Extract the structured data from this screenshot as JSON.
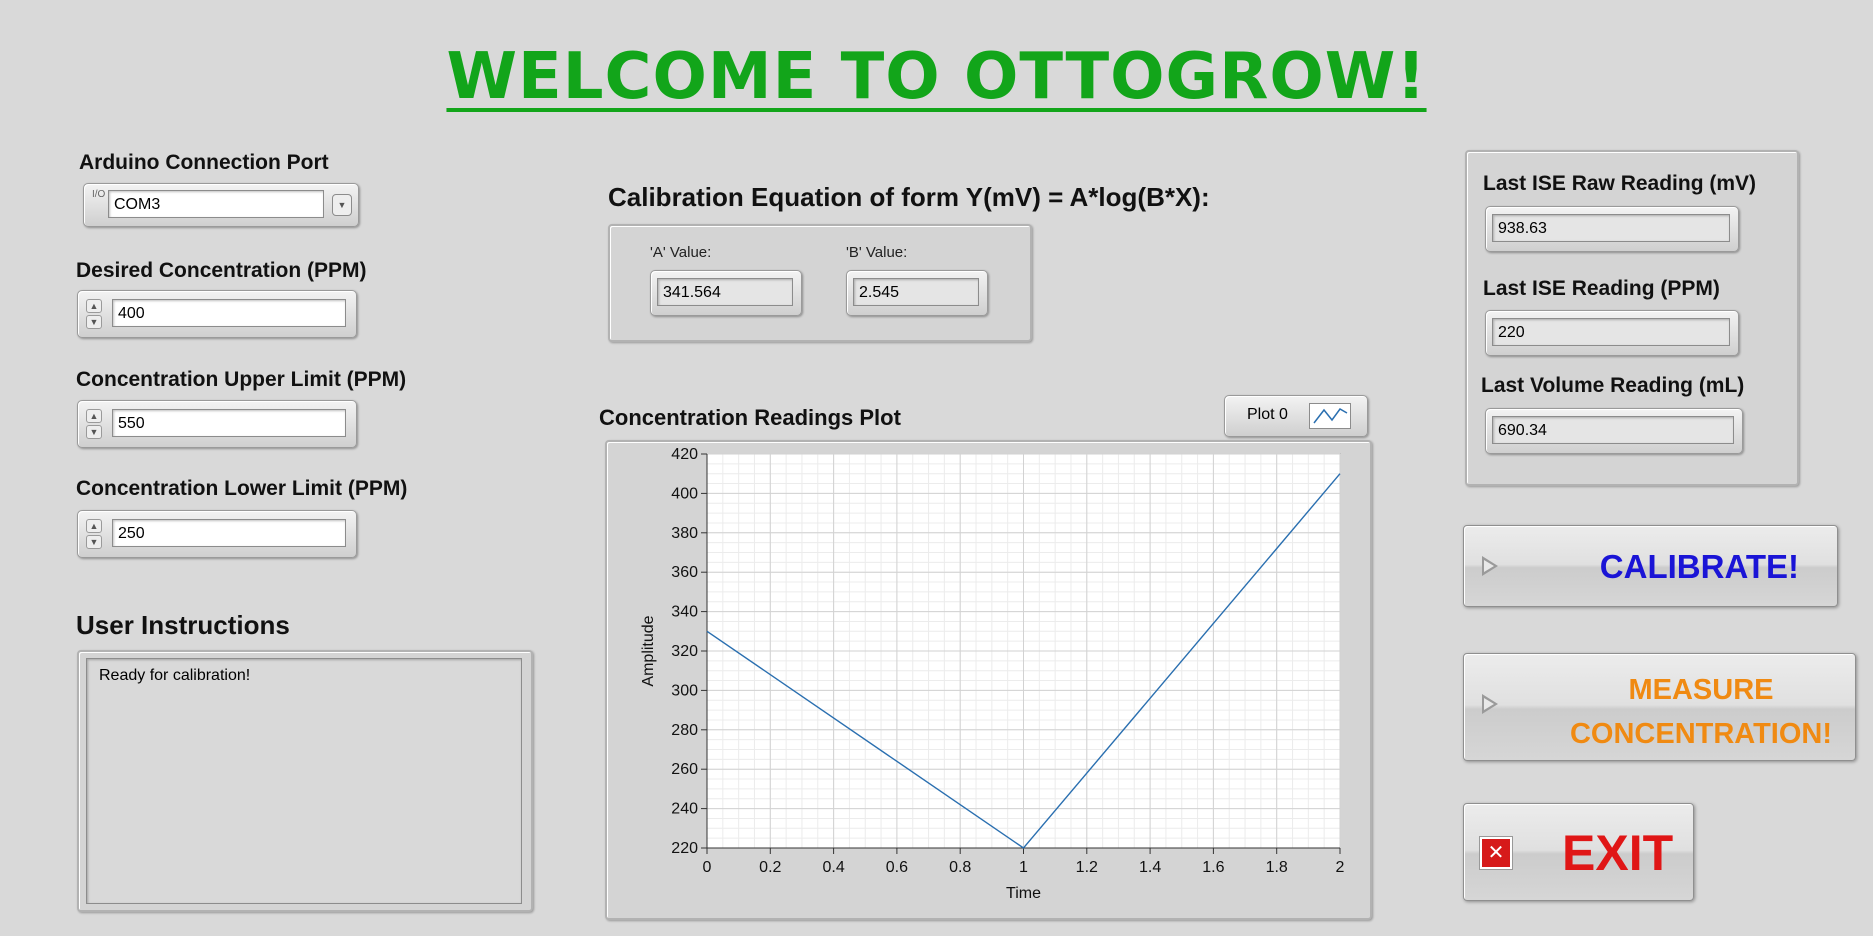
{
  "title": "WELCOME TO OTTOGROW!",
  "left": {
    "port_label": "Arduino Connection Port",
    "port_value": "COM3",
    "port_io_glyph": "I/O",
    "desired_label": "Desired Concentration (PPM)",
    "desired_value": "400",
    "upper_label": "Concentration Upper Limit (PPM)",
    "upper_value": "550",
    "lower_label": "Concentration Lower Limit (PPM)",
    "lower_value": "250",
    "instructions_label": "User Instructions",
    "instructions_text": "Ready for calibration!"
  },
  "calibration": {
    "heading": "Calibration Equation of form Y(mV) = A*log(B*X):",
    "a_label": "'A' Value:",
    "a_value": "341.564",
    "b_label": "'B' Value:",
    "b_value": "2.545"
  },
  "plot": {
    "label": "Concentration Readings Plot",
    "legend": "Plot 0"
  },
  "readings": {
    "raw_label": "Last ISE Raw Reading (mV)",
    "raw_value": "938.63",
    "ppm_label": "Last ISE Reading (PPM)",
    "ppm_value": "220",
    "volume_label": "Last Volume Reading (mL)",
    "volume_value": "690.34"
  },
  "buttons": {
    "calibrate": "CALIBRATE!",
    "measure_line1": "MEASURE",
    "measure_line2": "CONCENTRATION!",
    "exit": "EXIT"
  },
  "colors": {
    "title": "#12a51a",
    "calibrate": "#1a14d6",
    "measure": "#f08a12",
    "exit": "#e01616",
    "plot_line": "#2a6fb0"
  },
  "icons": {
    "exit_icon": "close-icon",
    "button_arrow": "play-triangle-icon",
    "dropdown": "chevron-down-icon",
    "spinner": "up-down-arrows-icon"
  },
  "chart_data": {
    "type": "line",
    "xlabel": "Time",
    "ylabel": "Amplitude",
    "xlim": [
      0,
      2
    ],
    "ylim": [
      220,
      420
    ],
    "xticks": [
      "0",
      "0.2",
      "0.4",
      "0.6",
      "0.8",
      "1",
      "1.2",
      "1.4",
      "1.6",
      "1.8",
      "2"
    ],
    "yticks": [
      "220",
      "240",
      "260",
      "280",
      "300",
      "320",
      "340",
      "360",
      "380",
      "400",
      "420"
    ],
    "grid": true,
    "legend": "top-right",
    "series": [
      {
        "name": "Plot 0",
        "x": [
          0,
          1,
          2
        ],
        "y": [
          330,
          220,
          410
        ]
      }
    ]
  }
}
